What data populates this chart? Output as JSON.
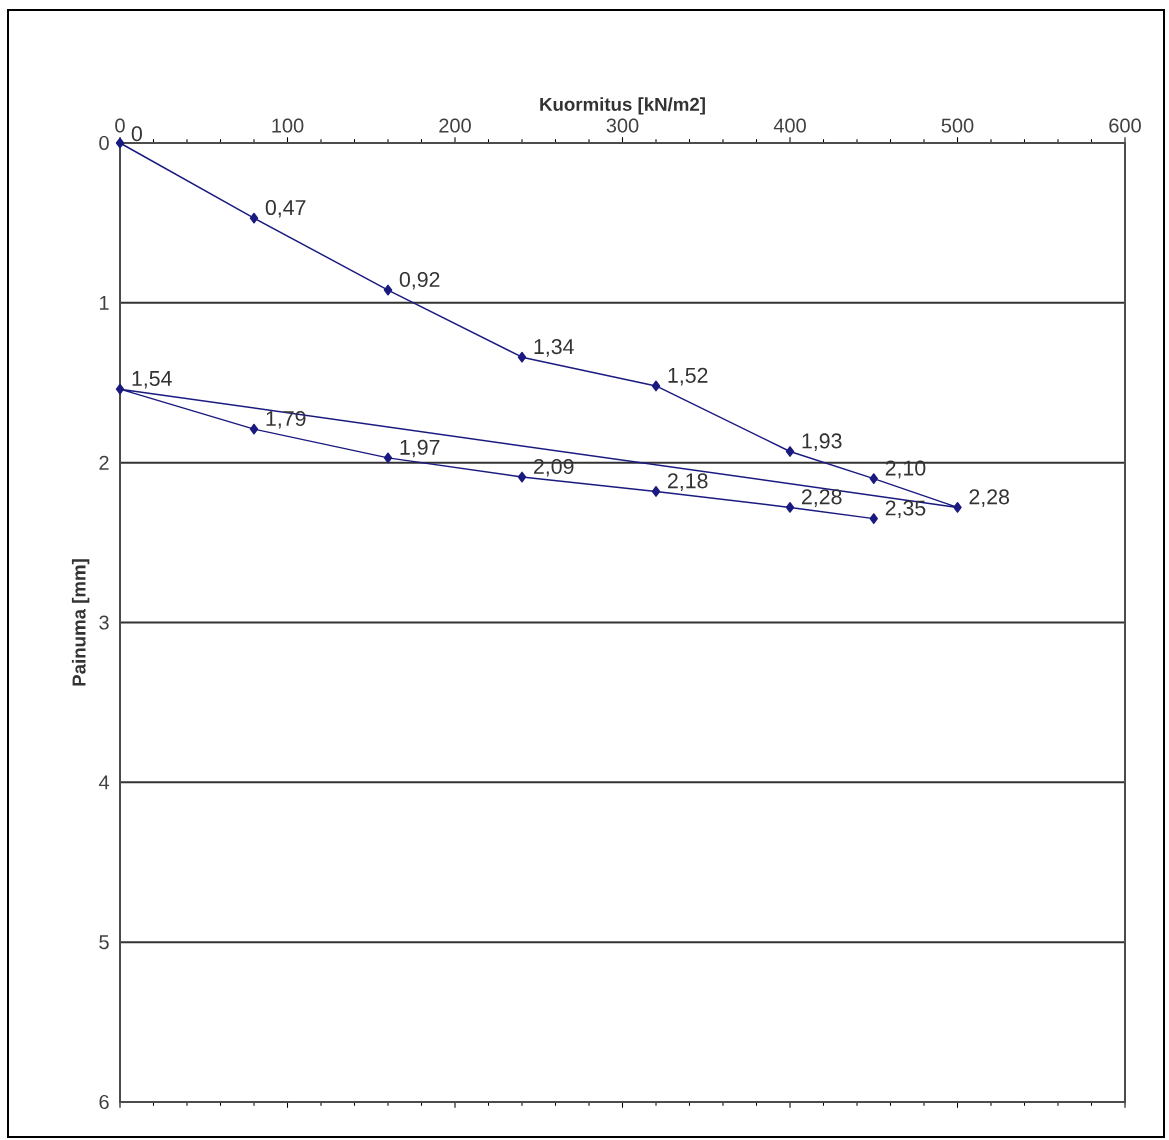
{
  "chart_data": {
    "type": "line",
    "xlabel": "Kuormitus [kN/m2]",
    "ylabel": "Painuma [mm]",
    "x": [
      0,
      80,
      160,
      240,
      320,
      400,
      450,
      500,
      0,
      80,
      160,
      240,
      320,
      400,
      450
    ],
    "series": [
      {
        "color": "#1a1a80",
        "values": [
          0,
          0.47,
          0.92,
          1.34,
          1.52,
          1.93,
          2.1,
          2.28,
          1.54,
          1.79,
          1.97,
          2.09,
          2.18,
          2.28,
          2.35
        ],
        "value_labels": [
          "0",
          "0,47",
          "0,92",
          "1,34",
          "1,52",
          "1,93",
          "2,10",
          "2,28",
          "1,54",
          "1,79",
          "1,97",
          "2,09",
          "2,18",
          "2,28",
          "2,35"
        ]
      }
    ],
    "xlim": [
      0,
      600
    ],
    "xticks": [
      0,
      100,
      200,
      300,
      400,
      500,
      600
    ],
    "ylim": [
      6,
      0
    ],
    "yticks": [
      0,
      1,
      2,
      3,
      4,
      5,
      6
    ],
    "grid": "y",
    "marker": "diamond",
    "line_style": "solid"
  }
}
